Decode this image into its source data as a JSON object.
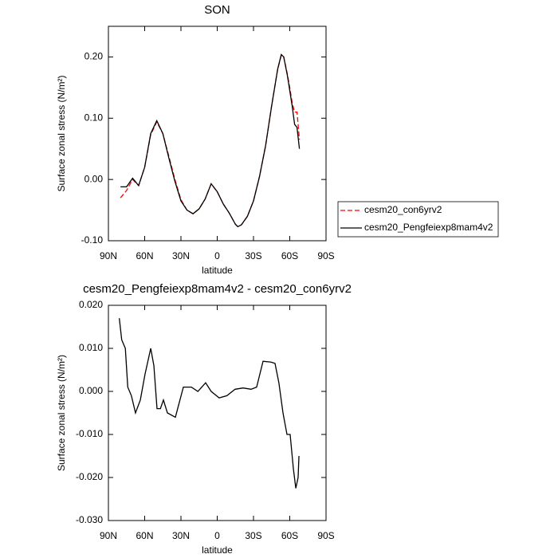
{
  "chart_data": [
    {
      "type": "line",
      "title": "SON",
      "xlabel": "latitude",
      "ylabel": "Surface zonal stress (N/m²)",
      "x": [
        80,
        75,
        70,
        65,
        60,
        55,
        50,
        45,
        40,
        35,
        30,
        25,
        20,
        15,
        10,
        5,
        0,
        -5,
        -10,
        -15,
        -17,
        -20,
        -25,
        -30,
        -35,
        -40,
        -45,
        -50,
        -53,
        -55,
        -58,
        -60,
        -62,
        -64,
        -66,
        -68
      ],
      "series": [
        {
          "name": "cesm20_con6yrv2",
          "color": "#ff0000",
          "linestyle": "dashed",
          "values": [
            -0.03,
            -0.018,
            0.0,
            -0.01,
            0.02,
            0.073,
            0.094,
            0.075,
            0.038,
            0.0,
            -0.033,
            -0.05,
            -0.056,
            -0.048,
            -0.032,
            -0.007,
            -0.02,
            -0.04,
            -0.055,
            -0.073,
            -0.077,
            -0.074,
            -0.06,
            -0.035,
            0.005,
            0.055,
            0.12,
            0.18,
            0.203,
            0.2,
            0.172,
            0.15,
            0.125,
            0.11,
            0.11,
            0.065
          ]
        },
        {
          "name": "cesm20_Pengfeiexp8mam4v2",
          "color": "#000000",
          "linestyle": "solid",
          "values": [
            -0.012,
            -0.012,
            0.002,
            -0.01,
            0.02,
            0.075,
            0.096,
            0.075,
            0.035,
            -0.003,
            -0.035,
            -0.05,
            -0.056,
            -0.048,
            -0.032,
            -0.007,
            -0.02,
            -0.04,
            -0.055,
            -0.073,
            -0.077,
            -0.074,
            -0.06,
            -0.035,
            0.005,
            0.055,
            0.12,
            0.18,
            0.204,
            0.2,
            0.17,
            0.145,
            0.12,
            0.09,
            0.085,
            0.05
          ]
        }
      ],
      "xlim": [
        90,
        -90
      ],
      "xticks": [
        {
          "value": 90,
          "label": "90N"
        },
        {
          "value": 60,
          "label": "60N"
        },
        {
          "value": 30,
          "label": "30N"
        },
        0,
        {
          "value": -30,
          "label": "30S"
        },
        {
          "value": -60,
          "label": "60S"
        },
        {
          "value": -90,
          "label": "90S"
        }
      ],
      "ylim": [
        -0.1,
        0.25
      ],
      "yticks": [
        {
          "value": -0.1,
          "label": "-0.10"
        },
        {
          "value": 0,
          "label": "0.00"
        },
        {
          "value": 0.1,
          "label": "0.10"
        },
        {
          "value": 0.2,
          "label": "0.20"
        }
      ],
      "legend": "outside-right"
    },
    {
      "type": "line",
      "title": "cesm20_Pengfeiexp8mam4v2 - cesm20_con6yrv2",
      "xlabel": "latitude",
      "ylabel": "Surface zonal stress (N/m²)",
      "x": [
        81,
        79,
        76,
        74,
        71,
        67.6,
        63.6,
        59.7,
        55,
        52.4,
        49.8,
        47,
        44.5,
        41.2,
        34.6,
        28,
        21.4,
        16,
        9.6,
        5,
        -1.6,
        -8,
        -14.8,
        -21.4,
        -28,
        -32.6,
        -37.9,
        -44.5,
        -47.8,
        -51,
        -54.4,
        -57.7,
        -60.3,
        -63,
        -65,
        -66.9,
        -67.6
      ],
      "series": [
        {
          "name": "cesm20_Pengfeiexp8mam4v2 - cesm20_con6yrv2",
          "color": "#000000",
          "linestyle": "solid",
          "values": [
            0.017,
            0.012,
            0.01,
            0.001,
            -0.001,
            -0.005,
            -0.002,
            0.004,
            0.01,
            0.006,
            -0.004,
            -0.004,
            -0.002,
            -0.005,
            -0.006,
            0.001,
            0.001,
            0.0,
            0.002,
            0.0,
            -0.0015,
            -0.001,
            0.0005,
            0.0008,
            0.0005,
            0.001,
            0.007,
            0.0068,
            0.0065,
            0.002,
            -0.005,
            -0.01,
            -0.01,
            -0.018,
            -0.0225,
            -0.02,
            -0.015
          ]
        }
      ],
      "xlim": [
        90,
        -90
      ],
      "xticks": [
        {
          "value": 90,
          "label": "90N"
        },
        {
          "value": 60,
          "label": "60N"
        },
        {
          "value": 30,
          "label": "30N"
        },
        0,
        {
          "value": -30,
          "label": "30S"
        },
        {
          "value": -60,
          "label": "60S"
        },
        {
          "value": -90,
          "label": "90S"
        }
      ],
      "ylim": [
        -0.03,
        0.02
      ],
      "yticks": [
        {
          "value": -0.03,
          "label": "-0.030"
        },
        {
          "value": -0.02,
          "label": "-0.020"
        },
        {
          "value": -0.01,
          "label": "-0.010"
        },
        {
          "value": 0,
          "label": "0.000"
        },
        {
          "value": 0.01,
          "label": "0.010"
        },
        {
          "value": 0.02,
          "label": "0.020"
        }
      ]
    }
  ]
}
